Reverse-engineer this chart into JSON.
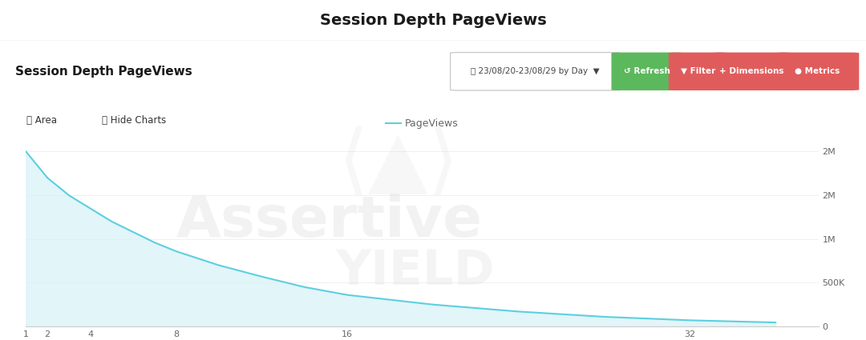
{
  "title": "Session Depth PageViews",
  "header_label": "Session Depth PageViews",
  "date_range": "23/08/20-23/08/29 by Day",
  "legend_label": "PageViews",
  "x_ticks": [
    1,
    2,
    4,
    8,
    16,
    32
  ],
  "x_data": [
    1,
    1.5,
    2,
    3,
    4,
    5,
    6,
    7,
    8,
    10,
    12,
    14,
    16,
    20,
    24,
    28,
    32,
    36
  ],
  "y_data": [
    2000000,
    1850000,
    1700000,
    1500000,
    1350000,
    1200000,
    1080000,
    960000,
    860000,
    700000,
    570000,
    450000,
    360000,
    250000,
    170000,
    110000,
    70000,
    45000
  ],
  "y_ticks": [
    0,
    500000,
    1000000,
    1500000,
    2000000
  ],
  "y_tick_labels": [
    "0",
    "500K",
    "1M",
    "2M",
    "2M"
  ],
  "ylim": [
    0,
    2100000
  ],
  "xlim": [
    1,
    38
  ],
  "line_color": "#5ecfdf",
  "fill_color": "#d6f2f7",
  "fill_alpha": 0.7,
  "bg_color": "#ffffff",
  "header_bg": "#f5f6f8",
  "tab_bg": "#eef0f3",
  "active_tab_bg": "#ffffff",
  "btn_refresh_color": "#5cb85c",
  "btn_filter_color": "#e05c5c",
  "btn_dim_color": "#e05c5c",
  "btn_metrics_color": "#e05c5c",
  "title_fontsize": 14,
  "axis_label_fontsize": 9,
  "legend_fontsize": 9,
  "watermark_text1": "Assertive",
  "watermark_text2": "YIELD",
  "grid_color": "#e8eaed"
}
